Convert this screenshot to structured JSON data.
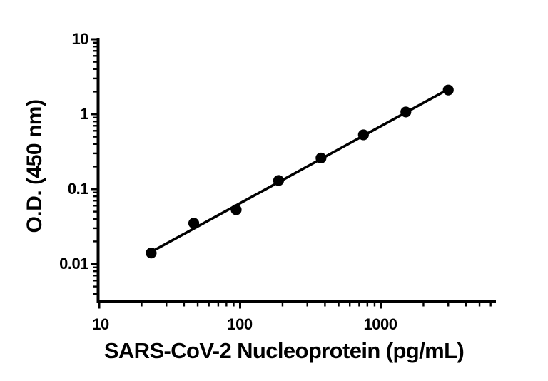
{
  "figure": {
    "background_color": "#ffffff",
    "foreground_color": "#000000"
  },
  "chart_data": {
    "type": "scatter",
    "title": "",
    "xlabel": "SARS-CoV-2 Nucleoprotein (pg/mL)",
    "ylabel": "O.D. (450 nm)",
    "xscale": "log",
    "yscale": "log",
    "xlim": [
      10,
      6500
    ],
    "ylim": [
      0.0032,
      10
    ],
    "grid": false,
    "legend": "none",
    "x_ticks": [
      10,
      100,
      1000
    ],
    "x_tick_labels": [
      "10",
      "100",
      "1000"
    ],
    "y_ticks": [
      10,
      1,
      0.1,
      0.01
    ],
    "y_tick_labels": [
      "10",
      "1",
      "0.1",
      "0.01"
    ],
    "axis_color": "#000000",
    "marker_color": "#000000",
    "line_color": "#000000",
    "series": [
      {
        "name": "standard-curve-points",
        "kind": "scatter",
        "marker": "filled-circle",
        "x": [
          23.4,
          46.9,
          93.8,
          187.5,
          375,
          750,
          1500,
          3000
        ],
        "y": [
          0.014,
          0.035,
          0.053,
          0.13,
          0.26,
          0.53,
          1.07,
          2.1
        ]
      },
      {
        "name": "linear-fit-line",
        "kind": "line",
        "x": [
          23.4,
          3000
        ],
        "y": [
          0.0145,
          2.15
        ]
      }
    ]
  }
}
